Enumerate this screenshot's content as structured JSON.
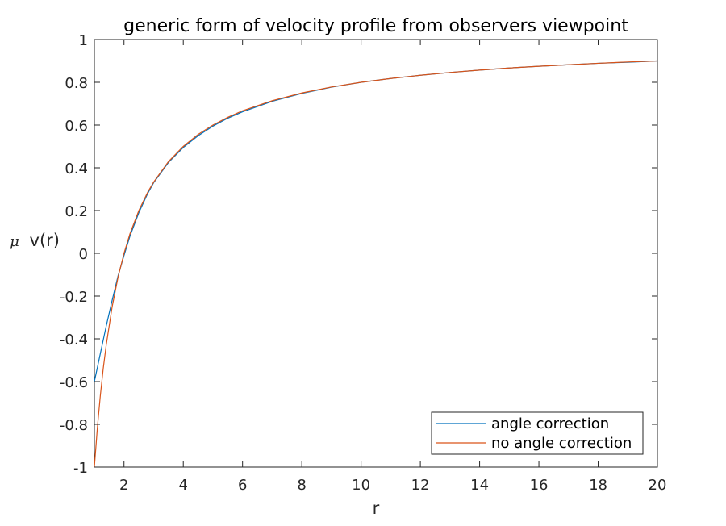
{
  "chart_data": {
    "type": "line",
    "title": "generic form of velocity profile from observers viewpoint",
    "xlabel": "r",
    "ylabel_prefix": "μ",
    "ylabel": "v(r)",
    "xlim": [
      1,
      20
    ],
    "ylim": [
      -1,
      1
    ],
    "xticks": [
      2,
      4,
      6,
      8,
      10,
      12,
      14,
      16,
      18,
      20
    ],
    "xtick_labels": [
      "2",
      "4",
      "6",
      "8",
      "10",
      "12",
      "14",
      "16",
      "18",
      "20"
    ],
    "yticks": [
      -1,
      -0.8,
      -0.6,
      -0.4,
      -0.2,
      0,
      0.2,
      0.4,
      0.6,
      0.8,
      1
    ],
    "ytick_labels": [
      "-1",
      "-0.8",
      "-0.6",
      "-0.4",
      "-0.2",
      "0",
      "0.2",
      "0.4",
      "0.6",
      "0.8",
      "1"
    ],
    "grid": false,
    "legend_position": "bottom-right",
    "series": [
      {
        "name": "angle correction",
        "color": "#0072BD",
        "x": [
          1,
          1.2,
          1.4,
          1.6,
          1.8,
          2,
          2.2,
          2.5,
          2.8,
          3,
          3.5,
          4,
          4.5,
          5,
          5.5,
          6,
          7,
          8,
          9,
          10,
          11,
          12,
          13,
          14,
          15,
          16,
          17,
          18,
          19,
          20
        ],
        "y": [
          -0.6,
          -0.47,
          -0.34,
          -0.22,
          -0.105,
          -0.01,
          0.08,
          0.19,
          0.28,
          0.33,
          0.425,
          0.495,
          0.55,
          0.595,
          0.632,
          0.662,
          0.711,
          0.748,
          0.777,
          0.8,
          0.818,
          0.833,
          0.846,
          0.857,
          0.867,
          0.875,
          0.882,
          0.889,
          0.894,
          0.9
        ]
      },
      {
        "name": "no angle correction",
        "color": "#D95319",
        "x": [
          1,
          1.1,
          1.2,
          1.3,
          1.4,
          1.6,
          1.8,
          2,
          2.2,
          2.5,
          2.8,
          3,
          3.5,
          4,
          4.5,
          5,
          5.5,
          6,
          7,
          8,
          9,
          10,
          11,
          12,
          13,
          14,
          15,
          16,
          17,
          18,
          19,
          20
        ],
        "y": [
          -1,
          -0.818,
          -0.667,
          -0.538,
          -0.429,
          -0.25,
          -0.111,
          0,
          0.091,
          0.2,
          0.286,
          0.333,
          0.429,
          0.5,
          0.556,
          0.6,
          0.636,
          0.667,
          0.714,
          0.75,
          0.778,
          0.8,
          0.818,
          0.833,
          0.846,
          0.857,
          0.867,
          0.875,
          0.882,
          0.889,
          0.895,
          0.9
        ]
      }
    ]
  }
}
